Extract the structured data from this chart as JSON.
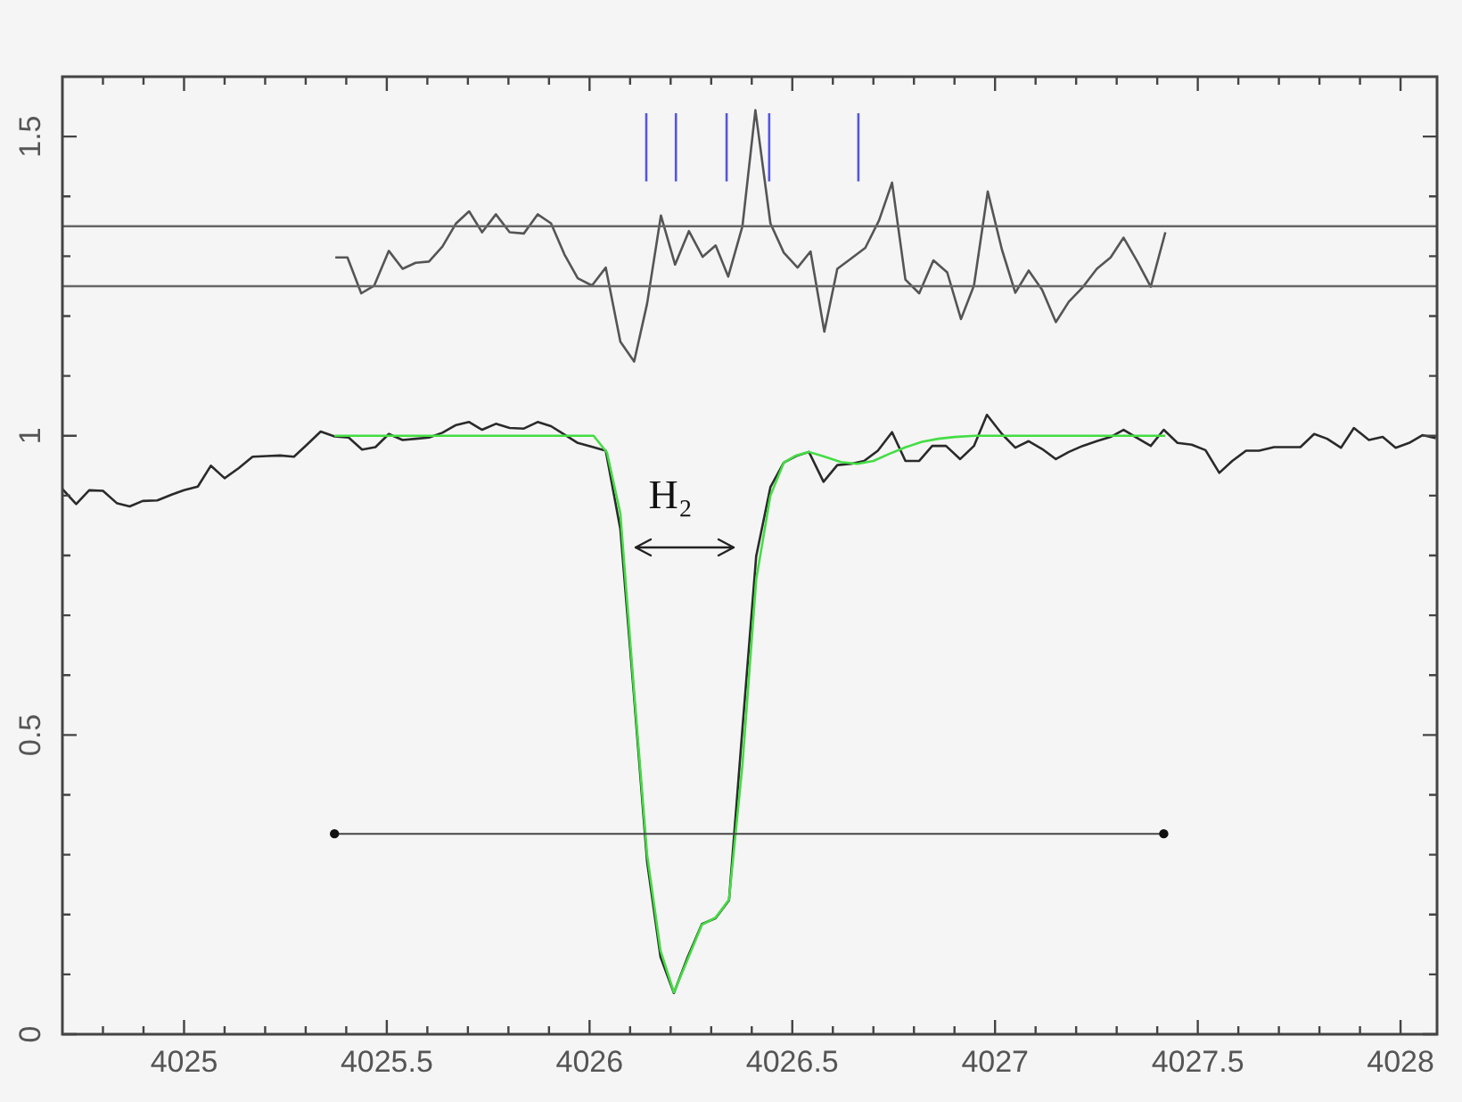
{
  "chart_data": {
    "type": "line",
    "legend": false,
    "grid": false,
    "marker": "none",
    "xlim": [
      4024.7,
      4028.09
    ],
    "ylim": [
      0,
      1.6
    ],
    "xticks": [
      {
        "value": 4024.8,
        "label": null
      },
      {
        "value": 4024.9,
        "label": null
      },
      4025,
      {
        "value": 4025.1,
        "label": null
      },
      {
        "value": 4025.2,
        "label": null
      },
      {
        "value": 4025.3,
        "label": null
      },
      {
        "value": 4025.4,
        "label": null
      },
      4025.5,
      {
        "value": 4025.6,
        "label": null
      },
      {
        "value": 4025.7,
        "label": null
      },
      {
        "value": 4025.8,
        "label": null
      },
      {
        "value": 4025.9,
        "label": null
      },
      4026,
      {
        "value": 4026.1,
        "label": null
      },
      {
        "value": 4026.2,
        "label": null
      },
      {
        "value": 4026.3,
        "label": null
      },
      {
        "value": 4026.4,
        "label": null
      },
      4026.5,
      {
        "value": 4026.6,
        "label": null
      },
      {
        "value": 4026.7,
        "label": null
      },
      {
        "value": 4026.8,
        "label": null
      },
      {
        "value": 4026.9,
        "label": null
      },
      4027,
      {
        "value": 4027.1,
        "label": null
      },
      {
        "value": 4027.2,
        "label": null
      },
      {
        "value": 4027.3,
        "label": null
      },
      {
        "value": 4027.4,
        "label": null
      },
      4027.5,
      {
        "value": 4027.6,
        "label": null
      },
      {
        "value": 4027.7,
        "label": null
      },
      {
        "value": 4027.8,
        "label": null
      },
      {
        "value": 4027.9,
        "label": null
      },
      4028
    ],
    "yticks": [
      0,
      {
        "value": 0.1,
        "label": null
      },
      {
        "value": 0.2,
        "label": null
      },
      {
        "value": 0.3,
        "label": null
      },
      {
        "value": 0.4,
        "label": null
      },
      0.5,
      {
        "value": 0.6,
        "label": null
      },
      {
        "value": 0.7,
        "label": null
      },
      {
        "value": 0.8,
        "label": null
      },
      {
        "value": 0.9,
        "label": null
      },
      1,
      {
        "value": 1.1,
        "label": null
      },
      {
        "value": 1.2,
        "label": null
      },
      {
        "value": 1.3,
        "label": null
      },
      {
        "value": 1.4,
        "label": null
      },
      1.5
    ],
    "series": [
      {
        "color": "#2a2a2a",
        "x": [
          4024.7,
          4024.734,
          4024.766,
          4024.8,
          4024.835,
          4024.866,
          4024.898,
          4024.934,
          4024.971,
          4025.0,
          4025.034,
          4025.066,
          4025.1,
          4025.135,
          4025.169,
          4025.205,
          4025.237,
          4025.271,
          4025.303,
          4025.337,
          4025.371,
          4025.406,
          4025.439,
          4025.472,
          4025.505,
          4025.539,
          4025.571,
          4025.604,
          4025.637,
          4025.671,
          4025.703,
          4025.735,
          4025.769,
          4025.803,
          4025.838,
          4025.872,
          4025.905,
          4025.938,
          4025.971,
          4026.003,
          4026.04,
          4026.076,
          4026.109,
          4026.142,
          4026.175,
          4026.208,
          4026.242,
          4026.277,
          4026.311,
          4026.344,
          4026.377,
          4026.411,
          4026.446,
          4026.479,
          4026.509,
          4026.541,
          4026.577,
          4026.611,
          4026.645,
          4026.677,
          4026.711,
          4026.746,
          4026.779,
          4026.813,
          4026.845,
          4026.879,
          4026.914,
          4026.948,
          4026.98,
          4027.017,
          4027.05,
          4027.083,
          4027.116,
          4027.15,
          4027.182,
          4027.216,
          4027.251,
          4027.285,
          4027.317,
          4027.351,
          4027.384,
          4027.416,
          4027.45,
          4027.485,
          4027.519,
          4027.553,
          4027.585,
          4027.619,
          4027.651,
          4027.688,
          4027.721,
          4027.753,
          4027.787,
          4027.819,
          4027.853,
          4027.885,
          4027.922,
          4027.956,
          4027.988,
          4028.021,
          4028.054,
          4028.087
        ],
        "values": [
          0.911,
          0.886,
          0.909,
          0.908,
          0.887,
          0.882,
          0.891,
          0.892,
          0.902,
          0.909,
          0.915,
          0.95,
          0.929,
          0.946,
          0.965,
          0.966,
          0.967,
          0.965,
          0.985,
          1.007,
          0.999,
          0.997,
          0.977,
          0.981,
          1.003,
          0.993,
          0.995,
          0.997,
          1.005,
          1.018,
          1.023,
          1.01,
          1.02,
          1.013,
          1.012,
          1.023,
          1.016,
          1.002,
          0.988,
          0.982,
          0.975,
          0.844,
          0.571,
          0.288,
          0.129,
          0.069,
          0.129,
          0.184,
          0.194,
          0.224,
          0.51,
          0.799,
          0.914,
          0.955,
          0.966,
          0.973,
          0.923,
          0.951,
          0.953,
          0.958,
          0.975,
          1.006,
          0.958,
          0.958,
          0.983,
          0.983,
          0.961,
          0.983,
          1.035,
          1.003,
          0.98,
          0.991,
          0.978,
          0.961,
          0.973,
          0.983,
          0.991,
          0.998,
          1.01,
          0.996,
          0.983,
          1.01,
          0.988,
          0.985,
          0.976,
          0.938,
          0.958,
          0.975,
          0.975,
          0.981,
          0.981,
          0.981,
          1.003,
          0.995,
          0.98,
          1.013,
          0.993,
          0.998,
          0.98,
          0.988,
          1.001,
          0.996
        ]
      },
      {
        "color": "#44dd44",
        "x": [
          4025.371,
          4026.01,
          4026.043,
          4026.076,
          4026.109,
          4026.142,
          4026.175,
          4026.208,
          4026.242,
          4026.277,
          4026.311,
          4026.344,
          4026.377,
          4026.411,
          4026.446,
          4026.479,
          4026.509,
          4026.541,
          4026.58,
          4026.62,
          4026.66,
          4026.7,
          4026.74,
          4026.78,
          4026.82,
          4026.86,
          4026.9,
          4026.95,
          4027.42
        ],
        "values": [
          1.0,
          1.0,
          0.972,
          0.87,
          0.58,
          0.3,
          0.14,
          0.07,
          0.125,
          0.183,
          0.195,
          0.225,
          0.45,
          0.76,
          0.9,
          0.955,
          0.967,
          0.973,
          0.965,
          0.956,
          0.953,
          0.958,
          0.97,
          0.981,
          0.99,
          0.995,
          0.998,
          1.0,
          1.0
        ]
      },
      {
        "color": "#555555",
        "x": [
          4025.373,
          4025.403,
          4025.437,
          4025.469,
          4025.505,
          4025.539,
          4025.571,
          4025.604,
          4025.637,
          4025.671,
          4025.703,
          4025.735,
          4025.769,
          4025.803,
          4025.838,
          4025.872,
          4025.905,
          4025.938,
          4025.971,
          4026.006,
          4026.04,
          4026.076,
          4026.11,
          4026.142,
          4026.176,
          4026.211,
          4026.245,
          4026.279,
          4026.311,
          4026.342,
          4026.377,
          4026.409,
          4026.446,
          4026.479,
          4026.513,
          4026.545,
          4026.579,
          4026.611,
          4026.645,
          4026.68,
          4026.714,
          4026.746,
          4026.779,
          4026.813,
          4026.848,
          4026.882,
          4026.916,
          4026.948,
          4026.982,
          4027.017,
          4027.05,
          4027.083,
          4027.116,
          4027.15,
          4027.182,
          4027.216,
          4027.251,
          4027.285,
          4027.317,
          4027.351,
          4027.384,
          4027.42
        ],
        "values": [
          1.298,
          1.298,
          1.238,
          1.251,
          1.309,
          1.279,
          1.289,
          1.291,
          1.316,
          1.355,
          1.375,
          1.34,
          1.37,
          1.34,
          1.338,
          1.37,
          1.355,
          1.303,
          1.263,
          1.251,
          1.281,
          1.157,
          1.124,
          1.221,
          1.368,
          1.286,
          1.342,
          1.299,
          1.318,
          1.266,
          1.35,
          1.544,
          1.355,
          1.306,
          1.281,
          1.308,
          1.174,
          1.279,
          1.296,
          1.314,
          1.36,
          1.423,
          1.261,
          1.238,
          1.293,
          1.273,
          1.195,
          1.251,
          1.408,
          1.311,
          1.239,
          1.276,
          1.244,
          1.19,
          1.224,
          1.248,
          1.279,
          1.298,
          1.331,
          1.291,
          1.249,
          1.34
        ]
      },
      {
        "color": "#5555e0",
        "x": [
          4026.14,
          4026.14
        ],
        "values": [
          1.425,
          1.539
        ]
      },
      {
        "color": "#5555e0",
        "x": [
          4026.213,
          4026.213
        ],
        "values": [
          1.425,
          1.539
        ]
      },
      {
        "color": "#5555e0",
        "x": [
          4026.338,
          4026.338
        ],
        "values": [
          1.425,
          1.539
        ]
      },
      {
        "color": "#5555e0",
        "x": [
          4026.443,
          4026.443
        ],
        "values": [
          1.425,
          1.539
        ]
      },
      {
        "color": "#5555e0",
        "x": [
          4026.663,
          4026.663
        ],
        "values": [
          1.425,
          1.539
        ]
      },
      {
        "color": "#444444",
        "marker": "circle",
        "x": [
          4025.371,
          4027.416
        ],
        "values": [
          0.335,
          0.335
        ]
      }
    ],
    "ref_lines": [
      {
        "axis": "y",
        "value": 1.35,
        "color": "#666666"
      },
      {
        "axis": "y",
        "value": 1.25,
        "color": "#666666"
      }
    ],
    "annotations": [
      "H₂"
    ]
  }
}
